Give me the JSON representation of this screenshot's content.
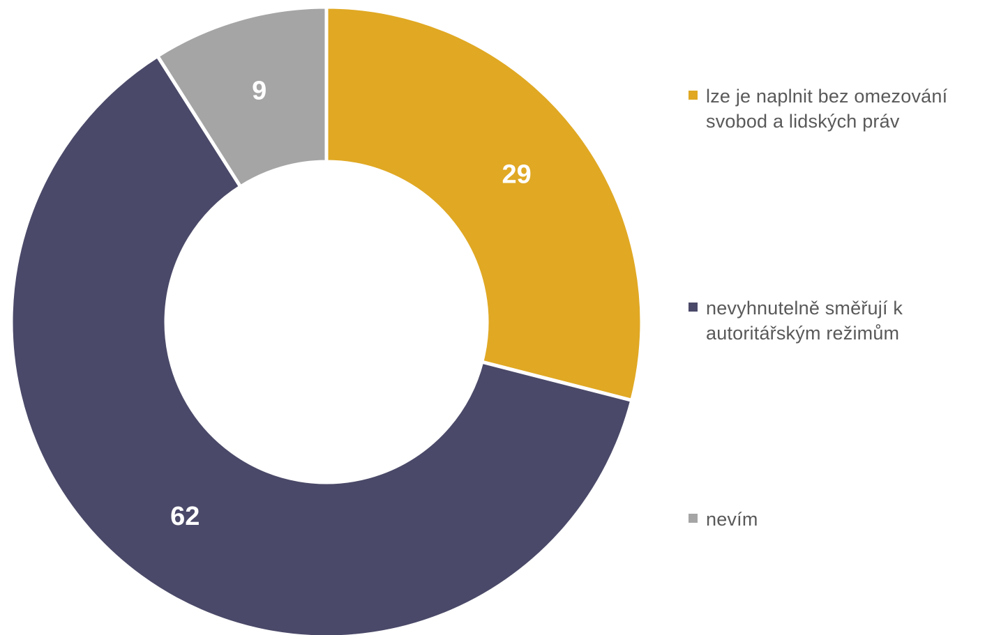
{
  "chart_data": {
    "type": "pie",
    "variant": "donut",
    "title": "",
    "legend_position": "right",
    "slices": [
      {
        "label": "lze je naplnit bez omezování\nsvobod a lidských práv",
        "value": 29,
        "color": "#E0A823"
      },
      {
        "label": "nevyhnutelně směřují k\nautoritářským režimům",
        "value": 62,
        "color": "#4A4969"
      },
      {
        "label": "nevím",
        "value": 9,
        "color": "#A5A5A5"
      }
    ],
    "data_labels_shown": true
  }
}
